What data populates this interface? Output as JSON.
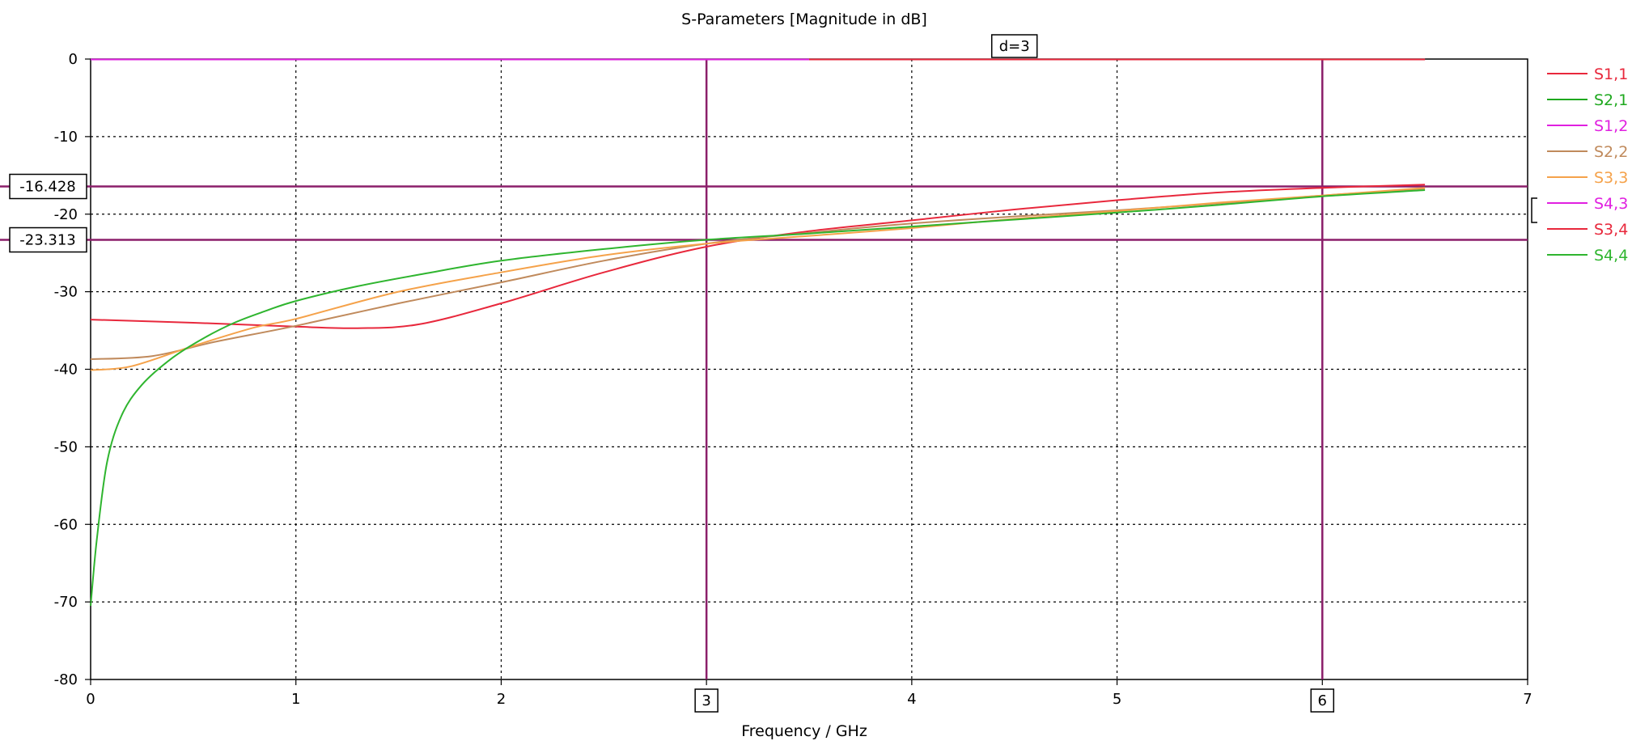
{
  "chart_data": {
    "type": "line",
    "title": "S-Parameters [Magnitude in dB]",
    "xlabel": "Frequency / GHz",
    "ylabel": "",
    "xlim": [
      0,
      7
    ],
    "ylim": [
      -80,
      0
    ],
    "x_ticks": [
      "0",
      "1",
      "2",
      "3",
      "4",
      "5",
      "6",
      "7"
    ],
    "y_ticks": [
      "0",
      "-10",
      "-20",
      "-30",
      "-40",
      "-50",
      "-60",
      "-70",
      "-80"
    ],
    "grid": true,
    "legend_position": "right",
    "markers": {
      "vertical": [
        "3",
        "6"
      ],
      "horizontal": [
        "-16.428",
        "-23.313"
      ],
      "delta_label": "d=3"
    },
    "series": [
      {
        "name": "S1,1",
        "color": "#e8283c",
        "x": [
          0,
          0.5,
          1,
          1.3,
          1.6,
          2,
          2.5,
          3,
          3.5,
          4,
          4.5,
          5,
          5.5,
          6,
          6.5
        ],
        "y": [
          -33.6,
          -34.0,
          -34.5,
          -34.7,
          -34.2,
          -31.5,
          -27.5,
          -24.2,
          -22.2,
          -20.8,
          -19.4,
          -18.2,
          -17.2,
          -16.6,
          -16.2
        ]
      },
      {
        "name": "S2,1",
        "color": "#1ea81e",
        "x": [
          3.4,
          4,
          5,
          6,
          6.5
        ],
        "y": [
          -0.05,
          -0.05,
          -0.05,
          -0.05,
          -0.05
        ]
      },
      {
        "name": "S1,2",
        "color": "#e020e0",
        "x": [
          0,
          0.5,
          1,
          2,
          3,
          3.4
        ],
        "y": [
          -0.05,
          -0.05,
          -0.05,
          -0.05,
          -0.05,
          -0.05
        ]
      },
      {
        "name": "S2,2",
        "color": "#c08a5c",
        "x": [
          0,
          0.3,
          0.6,
          1,
          1.5,
          2,
          2.5,
          3,
          3.5,
          4,
          4.5,
          5,
          5.5,
          6,
          6.5
        ],
        "y": [
          -38.7,
          -38.3,
          -36.5,
          -34.4,
          -31.5,
          -28.8,
          -26.0,
          -23.8,
          -22.4,
          -21.2,
          -20.3,
          -19.5,
          -18.6,
          -17.6,
          -16.7
        ]
      },
      {
        "name": "S3,3",
        "color": "#f5a24a",
        "x": [
          0,
          0.2,
          0.5,
          0.8,
          1,
          1.5,
          2,
          2.5,
          3,
          3.5,
          4,
          4.5,
          5,
          5.5,
          6,
          6.5
        ],
        "y": [
          -40.1,
          -39.6,
          -37.0,
          -34.6,
          -33.5,
          -30.0,
          -27.5,
          -25.3,
          -23.8,
          -22.8,
          -21.8,
          -20.6,
          -19.6,
          -18.5,
          -17.6,
          -16.6
        ]
      },
      {
        "name": "S4,3",
        "color": "#e020e0",
        "x": [
          0,
          6.5
        ],
        "y": [
          -0.05,
          -0.05
        ]
      },
      {
        "name": "S3,4",
        "color": "#e8283c",
        "x": [
          3.5,
          4,
          5,
          6,
          6.5
        ],
        "y": [
          -0.05,
          -0.05,
          -0.05,
          -0.05,
          -0.05
        ]
      },
      {
        "name": "S4,4",
        "color": "#2fb52f",
        "x": [
          0,
          0.03,
          0.08,
          0.15,
          0.25,
          0.4,
          0.55,
          0.7,
          0.85,
          1,
          1.3,
          1.6,
          2,
          2.5,
          3,
          3.5,
          4,
          4.5,
          5,
          5.5,
          6,
          6.5
        ],
        "y": [
          -70.5,
          -62.0,
          -52.0,
          -46.0,
          -42.0,
          -38.5,
          -36.0,
          -34.0,
          -32.5,
          -31.2,
          -29.3,
          -27.8,
          -26.0,
          -24.5,
          -23.3,
          -22.5,
          -21.6,
          -20.7,
          -19.8,
          -18.8,
          -17.7,
          -16.9
        ]
      }
    ]
  }
}
